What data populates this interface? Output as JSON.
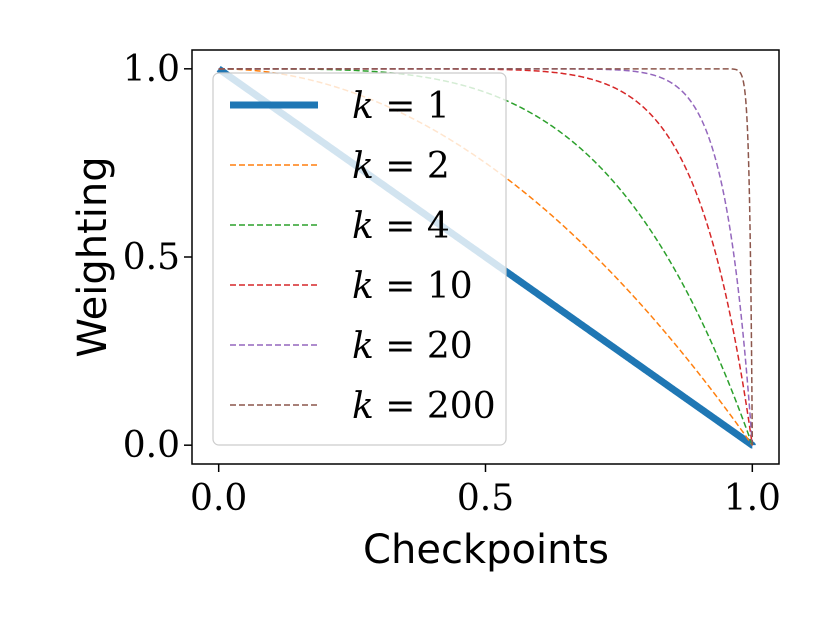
{
  "chart_data": {
    "type": "line",
    "xlabel": "Checkpoints",
    "ylabel": "Weighting",
    "xlim": [
      -0.05,
      1.05
    ],
    "ylim": [
      -0.05,
      1.05
    ],
    "x_ticks": [
      0.0,
      0.5,
      1.0
    ],
    "y_ticks": [
      0.0,
      0.5,
      1.0
    ],
    "x_tick_labels": [
      "0.0",
      "0.5",
      "1.0"
    ],
    "y_tick_labels": [
      "0.0",
      "0.5",
      "1.0"
    ],
    "grid": false,
    "legend_position": "upper-left",
    "function": "weight = 1 - x^k",
    "series": [
      {
        "name": "k = 1",
        "k_label": "k",
        "eq_label": " = 1",
        "k": 1,
        "color": "#1f77b4",
        "style": "solid",
        "linewidth": 7
      },
      {
        "name": "k = 2",
        "k_label": "k",
        "eq_label": " = 2",
        "k": 2,
        "color": "#ff7f0e",
        "style": "dashed",
        "linewidth": 1.5
      },
      {
        "name": "k = 4",
        "k_label": "k",
        "eq_label": " = 4",
        "k": 4,
        "color": "#2ca02c",
        "style": "dashed",
        "linewidth": 1.5
      },
      {
        "name": "k = 10",
        "k_label": "k",
        "eq_label": " = 10",
        "k": 10,
        "color": "#d62728",
        "style": "dashed",
        "linewidth": 1.5
      },
      {
        "name": "k = 20",
        "k_label": "k",
        "eq_label": " = 20",
        "k": 20,
        "color": "#9467bd",
        "style": "dashed",
        "linewidth": 1.5
      },
      {
        "name": "k = 200",
        "k_label": "k",
        "eq_label": " = 200",
        "k": 200,
        "color": "#8c564b",
        "style": "dashed",
        "linewidth": 1.5
      }
    ]
  }
}
